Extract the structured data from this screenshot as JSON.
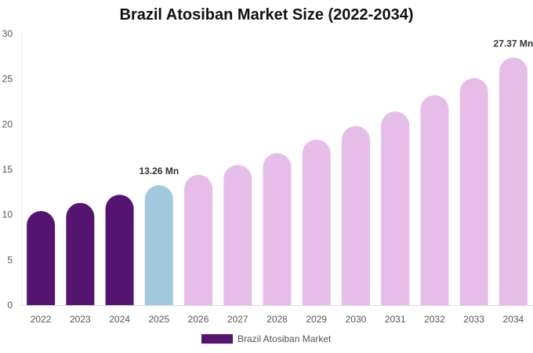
{
  "chart_data": {
    "type": "bar",
    "title": "Brazil Atosiban Market Size (2022-2034)",
    "categories": [
      "2022",
      "2023",
      "2024",
      "2025",
      "2026",
      "2027",
      "2028",
      "2029",
      "2030",
      "2031",
      "2032",
      "2033",
      "2034"
    ],
    "series": [
      {
        "name": "Brazil Atosiban Market",
        "values": [
          10.4,
          11.3,
          12.2,
          13.26,
          14.4,
          15.5,
          16.8,
          18.3,
          19.8,
          21.4,
          23.2,
          25.1,
          27.37
        ]
      }
    ],
    "bar_colors": [
      "#541470",
      "#541470",
      "#541470",
      "#a3c9de",
      "#e6bde8",
      "#e6bde8",
      "#e6bde8",
      "#e6bde8",
      "#e6bde8",
      "#e6bde8",
      "#e6bde8",
      "#e6bde8",
      "#e6bde8"
    ],
    "data_labels": [
      {
        "index": 3,
        "text": "13.26 Mn"
      },
      {
        "index": 12,
        "text": "27.37 Mn"
      }
    ],
    "ylim": [
      0,
      30
    ],
    "yticks": [
      0,
      5,
      10,
      15,
      20,
      25,
      30
    ],
    "grid": false,
    "legend": {
      "position": "bottom",
      "label": "Brazil Atosiban Market",
      "color": "#541470"
    }
  }
}
